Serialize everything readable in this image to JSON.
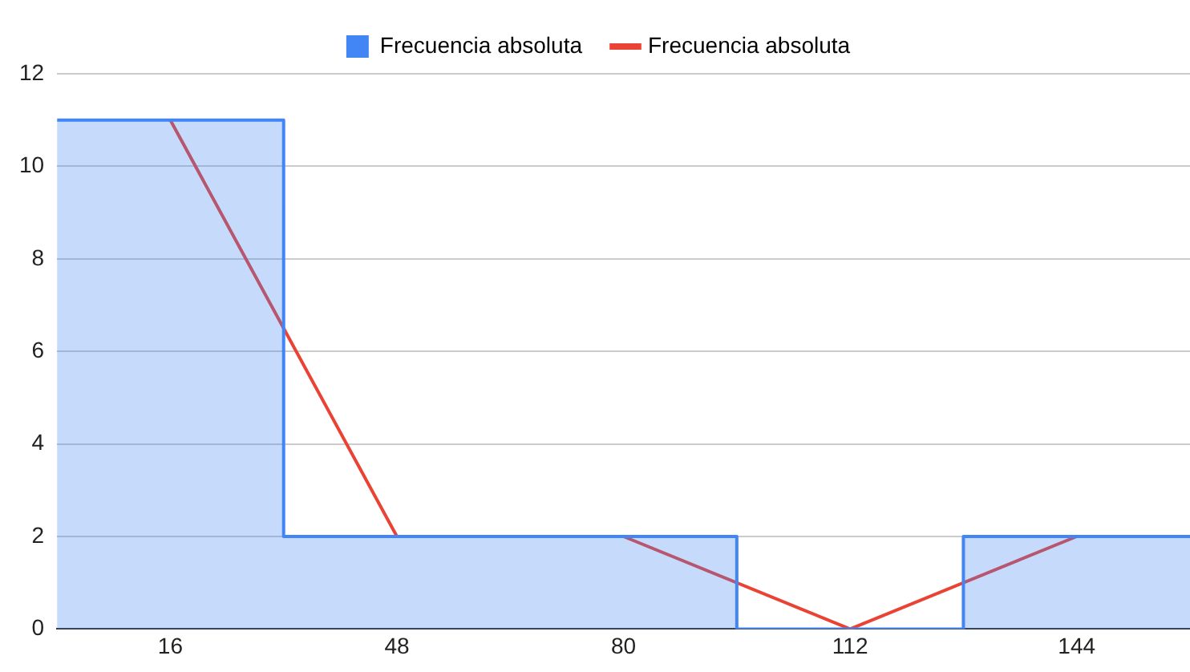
{
  "chart_data": {
    "type": "histogram",
    "bins": [
      0,
      32,
      64,
      96,
      128,
      160
    ],
    "xlim": [
      0,
      160
    ],
    "xticks": [
      16,
      48,
      80,
      112,
      144
    ],
    "ylim": [
      0,
      12
    ],
    "yticks": [
      0,
      2,
      4,
      6,
      8,
      10,
      12
    ],
    "grid": "y",
    "legend": "top",
    "series": [
      {
        "name": "Frecuencia absoluta",
        "color": "#4285f4",
        "values": [
          11,
          2,
          2,
          0,
          2
        ]
      },
      {
        "type": "line",
        "name": "Frecuencia absoluta",
        "color": "#ea4335",
        "x": [
          16,
          48,
          80,
          112,
          144
        ],
        "values": [
          11,
          2,
          2,
          0,
          2
        ]
      }
    ]
  }
}
